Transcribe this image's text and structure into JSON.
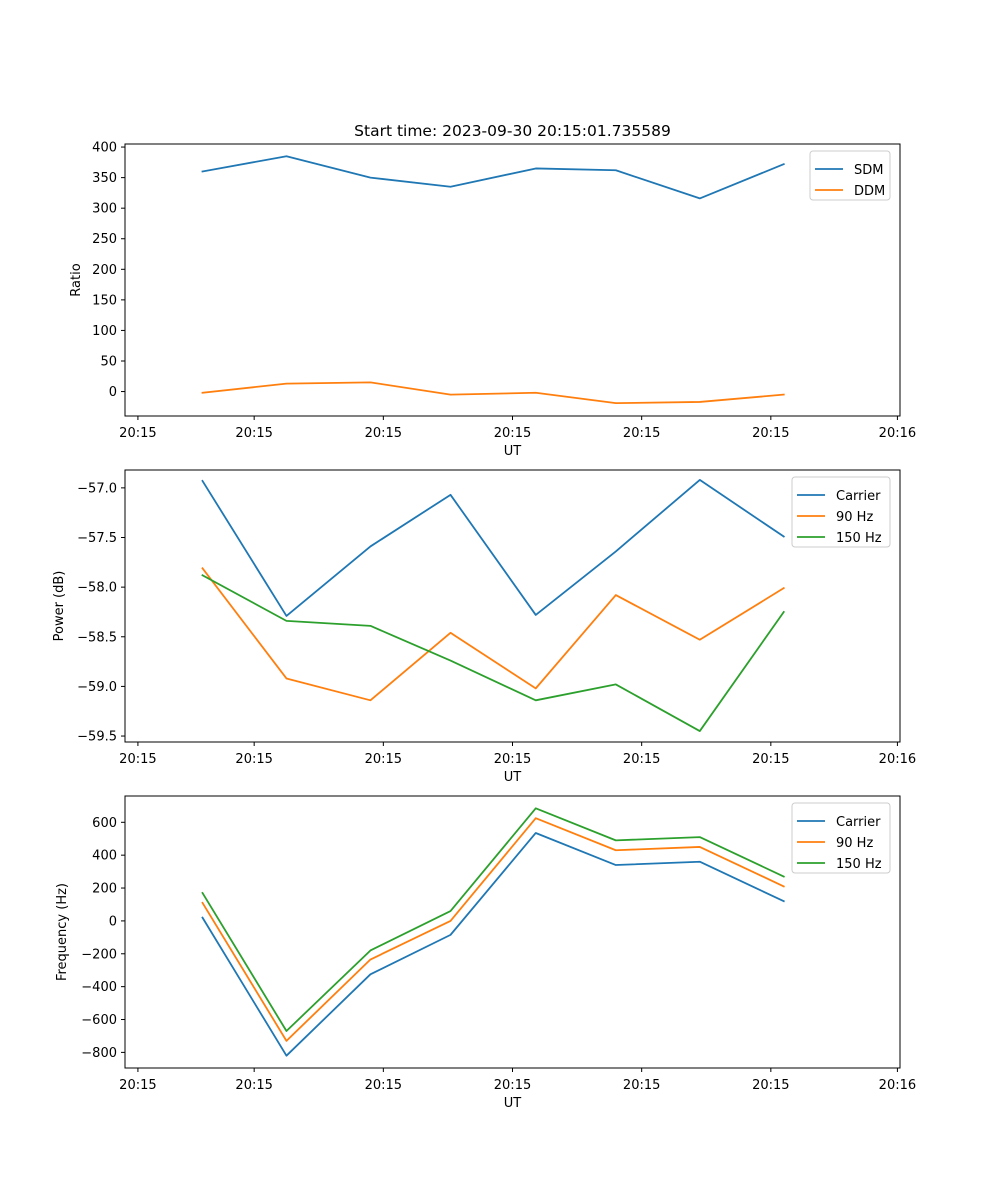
{
  "figure": {
    "title": "Start time: 2023-09-30 20:15:01.735589"
  },
  "colors": {
    "blue": "#1f77b4",
    "orange": "#ff7f0e",
    "green": "#2ca02c"
  },
  "chart_data": [
    {
      "type": "line",
      "title": "Start time: 2023-09-30 20:15:01.735589",
      "xlabel": "UT",
      "ylabel": "Ratio",
      "xlim": [
        0,
        6
      ],
      "ylim": [
        -40,
        405
      ],
      "yticks": [
        0,
        50,
        100,
        150,
        200,
        250,
        300,
        350,
        400
      ],
      "ytick_labels": [
        "0",
        "50",
        "100",
        "150",
        "200",
        "250",
        "300",
        "350",
        "400"
      ],
      "xticks": [
        0.1,
        1.0,
        2.0,
        3.0,
        4.0,
        5.0,
        5.98
      ],
      "xtick_labels": [
        "20:15",
        "20:15",
        "20:15",
        "20:15",
        "20:15",
        "20:15",
        "20:16"
      ],
      "x": [
        0.6,
        1.25,
        1.9,
        2.52,
        3.18,
        3.8,
        4.45,
        5.1
      ],
      "legend": "top-right",
      "series": [
        {
          "name": "SDM",
          "color": "#1f77b4",
          "values": [
            360,
            385,
            350,
            335,
            365,
            362,
            316,
            372
          ]
        },
        {
          "name": "DDM",
          "color": "#ff7f0e",
          "values": [
            -2,
            13,
            15,
            -5,
            -2,
            -19,
            -17,
            -5
          ]
        }
      ]
    },
    {
      "type": "line",
      "title": "",
      "xlabel": "UT",
      "ylabel": "Power (dB)",
      "xlim": [
        0,
        6
      ],
      "ylim": [
        -59.56,
        -56.82
      ],
      "yticks": [
        -57.0,
        -57.5,
        -58.0,
        -58.5,
        -59.0,
        -59.5
      ],
      "ytick_labels": [
        "−57.0",
        "−57.5",
        "−58.0",
        "−58.5",
        "−59.0",
        "−59.5"
      ],
      "xticks": [
        0.1,
        1.0,
        2.0,
        3.0,
        4.0,
        5.0,
        5.98
      ],
      "xtick_labels": [
        "20:15",
        "20:15",
        "20:15",
        "20:15",
        "20:15",
        "20:15",
        "20:16"
      ],
      "x": [
        0.6,
        1.25,
        1.9,
        2.52,
        3.18,
        3.8,
        4.45,
        5.1
      ],
      "legend": "top-right",
      "series": [
        {
          "name": "Carrier",
          "color": "#1f77b4",
          "values": [
            -56.93,
            -58.29,
            -57.59,
            -57.07,
            -58.28,
            -57.64,
            -56.92,
            -57.49
          ]
        },
        {
          "name": "90 Hz",
          "color": "#ff7f0e",
          "values": [
            -57.81,
            -58.92,
            -59.14,
            -58.46,
            -59.02,
            -58.08,
            -58.53,
            -58.01
          ]
        },
        {
          "name": "150 Hz",
          "color": "#2ca02c",
          "values": [
            -57.88,
            -58.34,
            -58.39,
            -58.74,
            -59.14,
            -58.98,
            -59.45,
            -58.25
          ]
        }
      ]
    },
    {
      "type": "line",
      "title": "",
      "xlabel": "UT",
      "ylabel": "Frequency (Hz)",
      "xlim": [
        0,
        6
      ],
      "ylim": [
        -895,
        760
      ],
      "yticks": [
        600,
        400,
        200,
        0,
        -200,
        -400,
        -600,
        -800
      ],
      "ytick_labels": [
        "600",
        "400",
        "200",
        "0",
        "−200",
        "−400",
        "−600",
        "−800"
      ],
      "xticks": [
        0.1,
        1.0,
        2.0,
        3.0,
        4.0,
        5.0,
        5.98
      ],
      "xtick_labels": [
        "20:15",
        "20:15",
        "20:15",
        "20:15",
        "20:15",
        "20:15",
        "20:16"
      ],
      "x": [
        0.6,
        1.25,
        1.9,
        2.52,
        3.18,
        3.8,
        4.45,
        5.1
      ],
      "legend": "top-right",
      "series": [
        {
          "name": "Carrier",
          "color": "#1f77b4",
          "values": [
            20,
            -820,
            -325,
            -85,
            535,
            340,
            360,
            120
          ]
        },
        {
          "name": "90 Hz",
          "color": "#ff7f0e",
          "values": [
            110,
            -730,
            -235,
            0,
            625,
            430,
            450,
            210
          ]
        },
        {
          "name": "150 Hz",
          "color": "#2ca02c",
          "values": [
            170,
            -670,
            -180,
            60,
            685,
            490,
            510,
            270
          ]
        }
      ]
    }
  ]
}
